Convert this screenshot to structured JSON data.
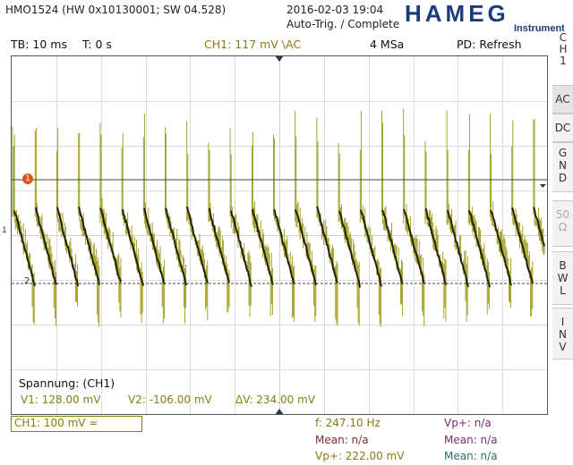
{
  "header": {
    "device": "HMO1524 (HW 0x10130001; SW 04.528)",
    "datetime": "2016-02-03 19:04",
    "trigger_status": "Auto-Trig. / Complete",
    "logo_text": "HAMEG",
    "logo_sub": "Instruments"
  },
  "statusbar": {
    "timebase": "TB: 10 ms",
    "trigger_time": "T: 0 s",
    "channel": "CH1: 117 mV \\AC",
    "sample_rate": "4 MSa",
    "peak_detect": "PD: Refresh"
  },
  "side_menu": {
    "ch_label_1": "C",
    "ch_label_2": "H",
    "ch_label_3": "1",
    "ac": "AC",
    "dc": "DC",
    "gnd": [
      "G",
      "N",
      "D"
    ],
    "ohm": [
      "50",
      "Ω"
    ],
    "bwl": [
      "B",
      "W",
      "L"
    ],
    "inv": [
      "I",
      "N",
      "V"
    ]
  },
  "cursor_box": {
    "title": "Spannung: (CH1)",
    "v1": "V1: 128.00 mV",
    "v2": "V2: -106.00 mV",
    "dv": "ΔV: 234.00 mV"
  },
  "markers": {
    "cursor1": "1",
    "cursor2": "2",
    "ch_ground": "1"
  },
  "footer": {
    "ch_scale": "CH1: 100 mV ≈",
    "freq": "f: 247.10 Hz",
    "mean1": "Mean: n/a",
    "vpp1": "Vp+: 222.00 mV",
    "vp_plus": "Vp+: n/a",
    "mean2": "Mean: n/a",
    "mean3": "Mean: n/a"
  },
  "colors": {
    "trace": "#9a9a18",
    "trace_dark": "#222200",
    "channel_accent": "#8a7a14",
    "cursor_marker": "#d9541e",
    "logo": "#1b3d7a"
  }
}
